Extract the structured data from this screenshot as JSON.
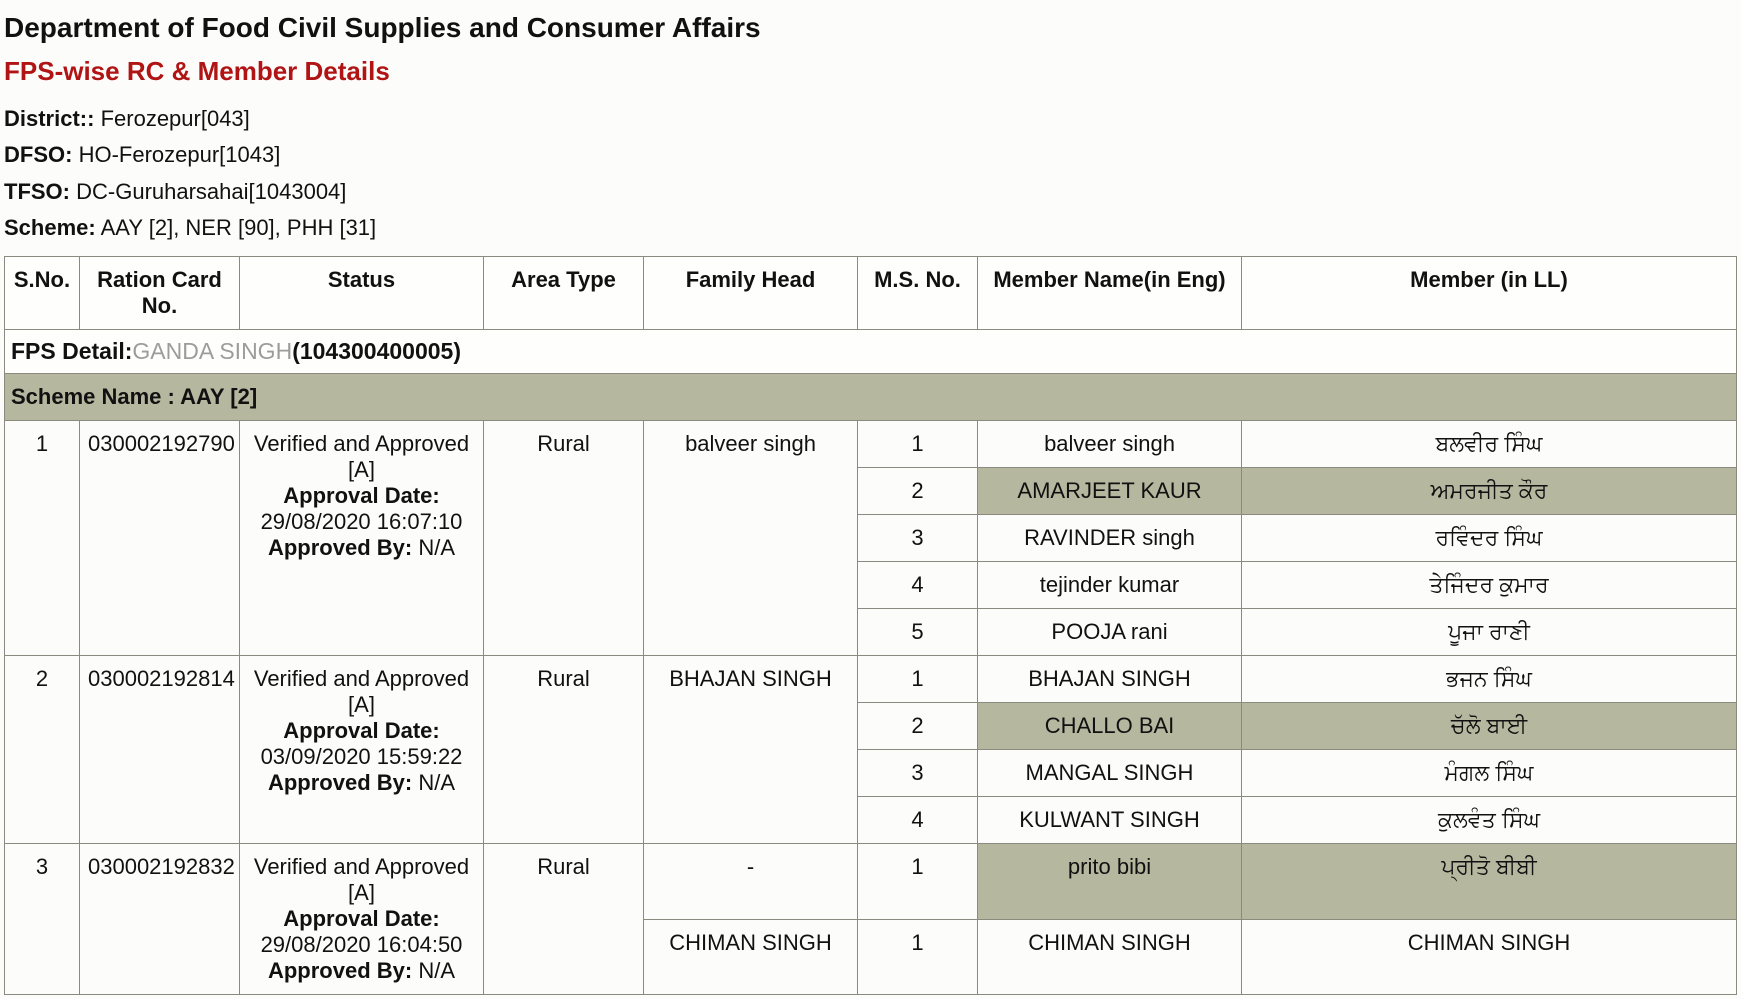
{
  "header": {
    "dept": "Department of Food  Civil Supplies and Consumer Affairs",
    "report_title": "FPS-wise RC & Member Details",
    "district_label": "District::",
    "district_value": "Ferozepur[043]",
    "dfso_label": "DFSO:",
    "dfso_value": "HO-Ferozepur[1043]",
    "tfso_label": "TFSO:",
    "tfso_value": "DC-Guruharsahai[1043004]",
    "scheme_label": "Scheme:",
    "scheme_value": "AAY [2], NER [90], PHH [31]"
  },
  "columns": {
    "sno": "S.No.",
    "rc": "Ration Card No.",
    "status": "Status",
    "area": "Area Type",
    "head": "Family Head",
    "msno": "M.S. No.",
    "eng": "Member Name(in Eng)",
    "ll": "Member (in LL)"
  },
  "fps": {
    "label": "FPS Detail:",
    "name": "GANDA SINGH",
    "code": "(104300400005)"
  },
  "scheme_row": "Scheme Name :  AAY  [2]",
  "labels": {
    "approval_date": "Approval Date:",
    "approved_by": "Approved By:"
  },
  "rows": [
    {
      "sno": "1",
      "rc": "030002192790",
      "status_line": "Verified and Approved [A]",
      "approval_date": "29/08/2020 16:07:10",
      "approved_by": "N/A",
      "area": "Rural",
      "head": "balveer singh",
      "members": [
        {
          "no": "1",
          "eng": "balveer singh",
          "ll": "ਬਲਵੀਰ ਸਿੰਘ",
          "alt": false
        },
        {
          "no": "2",
          "eng": "AMARJEET KAUR",
          "ll": "ਅਮਰਜੀਤ ਕੌਰ",
          "alt": true
        },
        {
          "no": "3",
          "eng": "RAVINDER singh",
          "ll": "ਰਵਿੰਦਰ ਸਿੰਘ",
          "alt": false
        },
        {
          "no": "4",
          "eng": "tejinder kumar",
          "ll": "ਤੇਜਿੰਦਰ ਕੁਮਾਰ",
          "alt": false
        },
        {
          "no": "5",
          "eng": "POOJA rani",
          "ll": "ਪੂਜਾ ਰਾਣੀ",
          "alt": false
        }
      ]
    },
    {
      "sno": "2",
      "rc": "030002192814",
      "status_line": "Verified and Approved [A]",
      "approval_date": "03/09/2020 15:59:22",
      "approved_by": "N/A",
      "area": "Rural",
      "head": "BHAJAN SINGH",
      "members": [
        {
          "no": "1",
          "eng": "BHAJAN SINGH",
          "ll": "ਭਜਨ ਸਿੰਘ",
          "alt": false
        },
        {
          "no": "2",
          "eng": "CHALLO BAI",
          "ll": "ਚੱਲੋ ਬਾਈ",
          "alt": true
        },
        {
          "no": "3",
          "eng": "MANGAL SINGH",
          "ll": "ਮੰਗਲ ਸਿੰਘ",
          "alt": false
        },
        {
          "no": "4",
          "eng": "KULWANT SINGH",
          "ll": "ਕੁਲਵੰਤ ਸਿੰਘ",
          "alt": false
        }
      ]
    },
    {
      "sno": "3",
      "rc": "030002192832",
      "status_line": "Verified and Approved [A]",
      "approval_date": "29/08/2020 16:04:50",
      "approved_by": "N/A",
      "area": "Rural",
      "head": "-",
      "members": [
        {
          "no": "1",
          "eng": "prito bibi",
          "ll": "ਪ੍ਰੀਤੋ ਬੀਬੀ",
          "alt": true
        }
      ],
      "extra_head_row": {
        "head": "CHIMAN SINGH",
        "no": "1",
        "eng": "CHIMAN SINGH",
        "ll": "CHIMAN SINGH"
      }
    }
  ]
}
